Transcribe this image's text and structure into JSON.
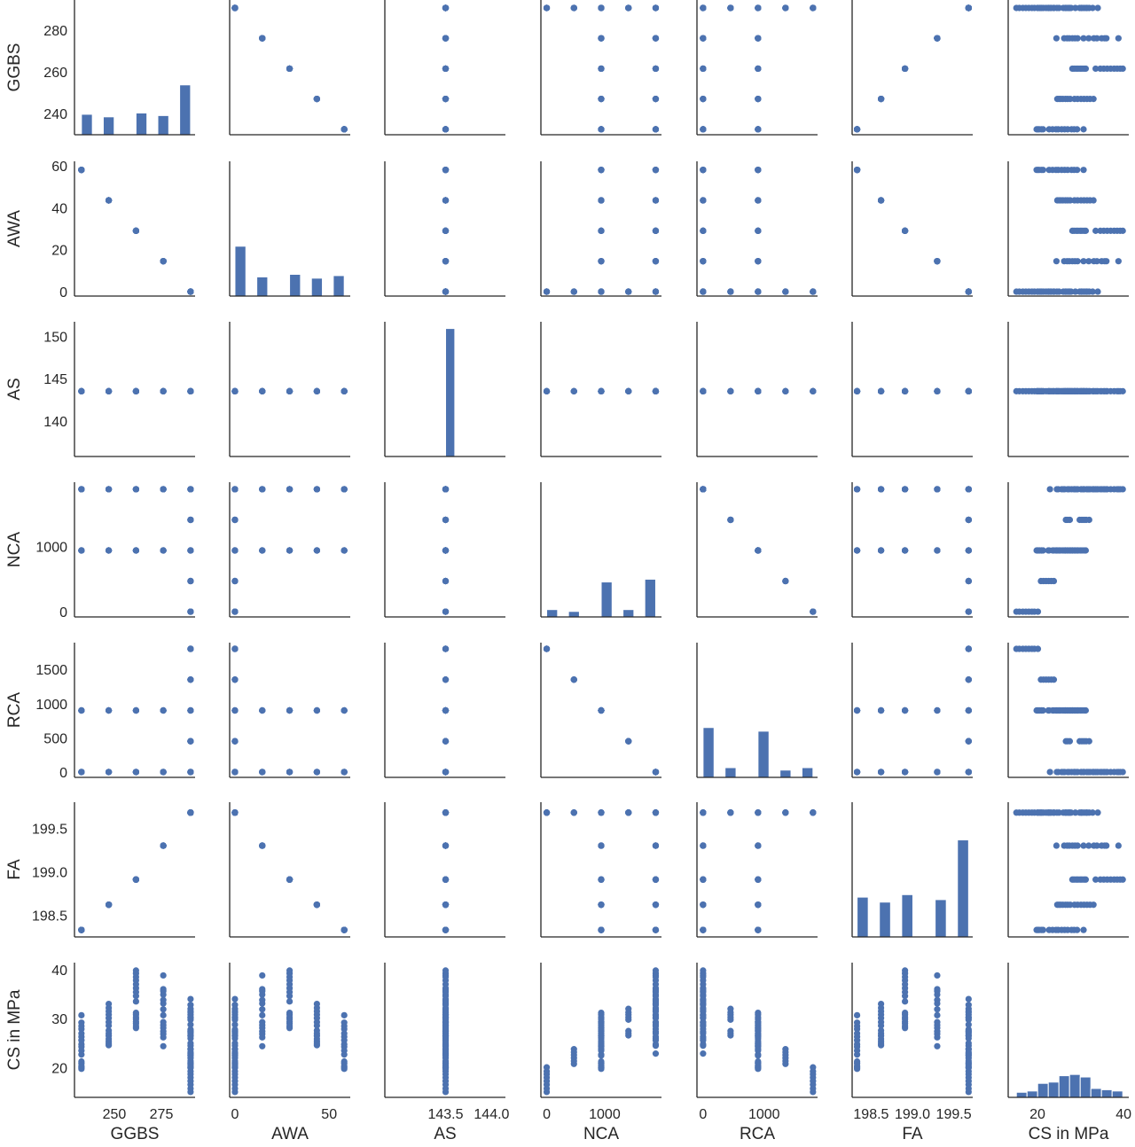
{
  "chart_data": {
    "type": "pairplot",
    "grid": false,
    "point_color": "#4c72b0",
    "bar_color": "#4c72b0",
    "diagonal": "histogram",
    "offdiagonal": "scatter",
    "variables": [
      {
        "name": "GGBS",
        "x_range": [
          228.8,
          292.9
        ],
        "y_range": [
          229.9,
          294.3
        ],
        "x_ticks": [
          "250",
          "275"
        ],
        "y_ticks": [
          "240",
          "260",
          "280"
        ]
      },
      {
        "name": "AWA",
        "x_range": [
          -2.8,
          61.2
        ],
        "y_range": [
          -2.1,
          62.1
        ],
        "x_ticks": [
          "0",
          "50"
        ],
        "y_ticks": [
          "0",
          "20",
          "40",
          "60"
        ]
      },
      {
        "name": "AS",
        "x_range": [
          142.84,
          144.15
        ],
        "y_range": [
          135.8,
          151.7
        ],
        "x_ticks": [
          "143.5",
          "144.0"
        ],
        "y_ticks": [
          "140",
          "145",
          "150"
        ]
      },
      {
        "name": "NCA",
        "x_range": [
          -100,
          1980
        ],
        "y_range": [
          -81,
          1988
        ],
        "x_ticks": [
          "0",
          "1000"
        ],
        "y_ticks": [
          "0",
          "1000"
        ]
      },
      {
        "name": "RCA",
        "x_range": [
          -100,
          1875
        ],
        "y_range": [
          -78,
          1891
        ],
        "x_ticks": [
          "0",
          "1000"
        ],
        "y_ticks": [
          "0",
          "500",
          "1000",
          "1500"
        ]
      },
      {
        "name": "FA",
        "x_range": [
          198.27,
          199.73
        ],
        "y_range": [
          198.25,
          199.8
        ],
        "x_ticks": [
          "198.5",
          "199.0",
          "199.5"
        ],
        "y_ticks": [
          "198.5",
          "199.0",
          "199.5"
        ]
      },
      {
        "name": "CS in MPa",
        "x_range": [
          13.2,
          41.2
        ],
        "y_range": [
          14.0,
          41.4
        ],
        "x_ticks": [
          "20",
          "40"
        ],
        "y_ticks": [
          "20",
          "30",
          "40"
        ]
      }
    ],
    "mixes": [
      {
        "GGBS": 232.5,
        "AWA": 58,
        "AS": 143.5,
        "NCA": 1880,
        "RCA": 0,
        "FA": 198.33,
        "CS in MPa": [
          24.8,
          25.6,
          26.3,
          27.0,
          27.9,
          28.5,
          29.2,
          30.7
        ]
      },
      {
        "GGBS": 232.5,
        "AWA": 58,
        "AS": 143.5,
        "NCA": 940,
        "RCA": 900,
        "FA": 198.33,
        "CS in MPa": [
          19.8,
          20.1,
          20.4,
          20.9,
          21.3,
          22.7,
          23.5,
          24.3
        ]
      },
      {
        "GGBS": 247,
        "AWA": 43.5,
        "AS": 143.5,
        "NCA": 1880,
        "RCA": 0,
        "FA": 198.62,
        "CS in MPa": [
          28.6,
          29.3,
          30.1,
          30.8,
          31.5,
          32.2,
          33.0
        ]
      },
      {
        "GGBS": 247,
        "AWA": 43.5,
        "AS": 143.5,
        "NCA": 940,
        "RCA": 900,
        "FA": 198.62,
        "CS in MPa": [
          24.6,
          25.0,
          25.4,
          25.9,
          26.5,
          27.0,
          27.6
        ]
      },
      {
        "GGBS": 261.5,
        "AWA": 29,
        "AS": 143.5,
        "NCA": 1880,
        "RCA": 0,
        "FA": 198.91,
        "CS in MPa": [
          33.5,
          34.6,
          35.4,
          36.2,
          37.0,
          37.8,
          38.5,
          39.2,
          39.8
        ]
      },
      {
        "GGBS": 261.5,
        "AWA": 29,
        "AS": 143.5,
        "NCA": 940,
        "RCA": 900,
        "FA": 198.91,
        "CS in MPa": [
          28.1,
          28.5,
          29.0,
          29.4,
          29.9,
          30.3,
          30.8,
          31.2
        ]
      },
      {
        "GGBS": 276,
        "AWA": 14.5,
        "AS": 143.5,
        "NCA": 1880,
        "RCA": 0,
        "FA": 199.3,
        "CS in MPa": [
          30.7,
          31.9,
          33.1,
          33.8,
          34.9,
          35.6,
          36.0,
          38.8
        ]
      },
      {
        "GGBS": 276,
        "AWA": 14.5,
        "AS": 143.5,
        "NCA": 940,
        "RCA": 900,
        "FA": 199.3,
        "CS in MPa": [
          24.4,
          26.2,
          26.9,
          27.4,
          28.1,
          28.7,
          29.3
        ]
      },
      {
        "GGBS": 290.5,
        "AWA": 0,
        "AS": 143.5,
        "NCA": 1880,
        "RCA": 0,
        "FA": 199.68,
        "CS in MPa": [
          22.9,
          24.5,
          26.0,
          27.3,
          28.8,
          30.2,
          31.5,
          32.8,
          34.0
        ]
      },
      {
        "GGBS": 290.5,
        "AWA": 0,
        "AS": 143.5,
        "NCA": 1410,
        "RCA": 450,
        "FA": 199.68,
        "CS in MPa": [
          26.6,
          27.0,
          27.5,
          29.8,
          30.3,
          30.8,
          31.3,
          32.0
        ]
      },
      {
        "GGBS": 290.5,
        "AWA": 0,
        "AS": 143.5,
        "NCA": 940,
        "RCA": 900,
        "FA": 199.68,
        "CS in MPa": [
          20.0,
          20.5,
          21.0,
          22.5,
          23.8,
          25.0,
          26.5,
          27.8
        ]
      },
      {
        "GGBS": 290.5,
        "AWA": 0,
        "AS": 143.5,
        "NCA": 470,
        "RCA": 1350,
        "FA": 199.68,
        "CS in MPa": [
          20.8,
          21.4,
          22.0,
          22.6,
          23.2,
          23.8
        ]
      },
      {
        "GGBS": 290.5,
        "AWA": 0,
        "AS": 143.5,
        "NCA": 0,
        "RCA": 1800,
        "FA": 199.68,
        "CS in MPa": [
          15.1,
          15.8,
          16.6,
          17.3,
          18.0,
          18.7,
          19.3,
          20.1
        ]
      }
    ]
  }
}
